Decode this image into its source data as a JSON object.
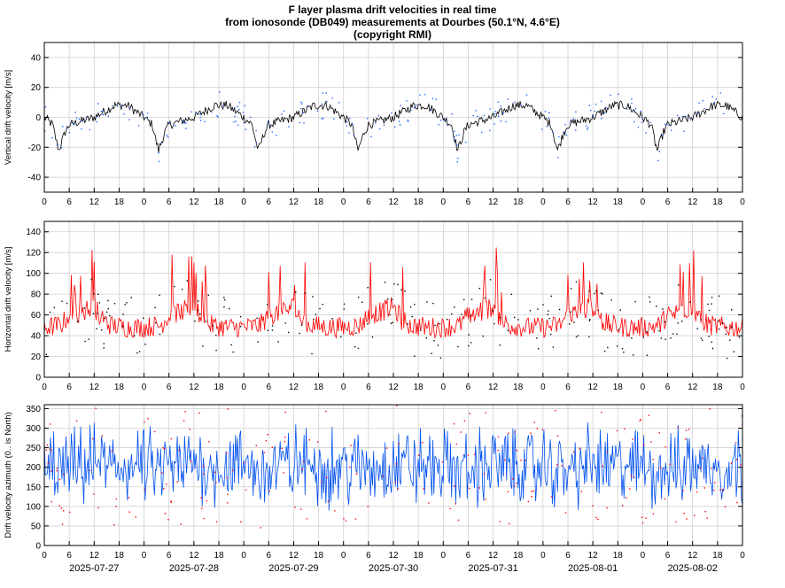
{
  "title_lines": [
    "F layer plasma drift velocities in real time",
    "from ionosonde (DB049) measurements at Dourbes (50.1°N, 4.6°E)",
    "(copyright RMI)"
  ],
  "colors": {
    "vertical_line": "#000000",
    "vertical_points": "#1e64ff",
    "horizontal_line": "#ff0000",
    "horizontal_points": "#000000",
    "azimuth_line": "#0050f0",
    "azimuth_points": "#ff0000",
    "grid": "#d0d0d0"
  },
  "chart_data": [
    {
      "type": "line",
      "ylabel": "Vertical drift velocity [m/s]",
      "ylim": [
        -50,
        50
      ],
      "yticks": [
        -40,
        -20,
        0,
        20,
        40
      ],
      "xticklabels": [
        "0",
        "6",
        "12",
        "18",
        "0",
        "6",
        "12",
        "18",
        "0",
        "6",
        "12",
        "18",
        "0",
        "6",
        "12",
        "18",
        "0",
        "6",
        "12",
        "18",
        "0",
        "6",
        "12",
        "18",
        "0",
        "6",
        "12",
        "18",
        "0"
      ],
      "xrange_hours": [
        0,
        168
      ],
      "grid": true,
      "profile": {
        "hours": [
          0,
          2,
          3,
          3.5,
          5,
          6,
          12,
          17,
          20,
          24
        ],
        "values": [
          0,
          -5,
          -17,
          -22,
          -10,
          -5,
          0,
          8,
          8,
          0
        ]
      },
      "noise": 3
    },
    {
      "type": "line",
      "ylabel": "Horizontal drift velocity [m/s]",
      "ylim": [
        0,
        150
      ],
      "yticks": [
        0,
        20,
        40,
        60,
        80,
        100,
        120,
        140
      ],
      "xticklabels": [
        "0",
        "6",
        "12",
        "18",
        "0",
        "6",
        "12",
        "18",
        "0",
        "6",
        "12",
        "18",
        "0",
        "6",
        "12",
        "18",
        "0",
        "6",
        "12",
        "18",
        "0",
        "6",
        "12",
        "18",
        "0",
        "6",
        "12",
        "18",
        "0"
      ],
      "xrange_hours": [
        0,
        168
      ],
      "grid": true,
      "profile": {
        "hours": [
          0,
          4,
          6,
          9,
          12,
          14,
          16,
          20,
          24
        ],
        "values": [
          48,
          50,
          60,
          63,
          68,
          55,
          50,
          48,
          48
        ]
      },
      "noise": 10
    },
    {
      "type": "line",
      "ylabel": "Drift velocity azimuth (0.. is North)",
      "ylim": [
        0,
        360
      ],
      "yticks": [
        0,
        50,
        100,
        150,
        200,
        250,
        300,
        350
      ],
      "xticklabels": [
        "0",
        "6",
        "12",
        "18",
        "0",
        "6",
        "12",
        "18",
        "0",
        "6",
        "12",
        "18",
        "0",
        "6",
        "12",
        "18",
        "0",
        "6",
        "12",
        "18",
        "0",
        "6",
        "12",
        "18",
        "0",
        "6",
        "12",
        "18",
        "0"
      ],
      "dates": [
        "2025-07-27",
        "2025-07-28",
        "2025-07-29",
        "2025-07-30",
        "2025-07-31",
        "2025-08-01",
        "2025-08-02"
      ],
      "xrange_hours": [
        0,
        168
      ],
      "grid": true,
      "profile": {
        "hours": [
          0,
          6,
          12,
          18,
          24
        ],
        "values": [
          200,
          190,
          210,
          200,
          200
        ]
      },
      "noise": 60
    }
  ]
}
